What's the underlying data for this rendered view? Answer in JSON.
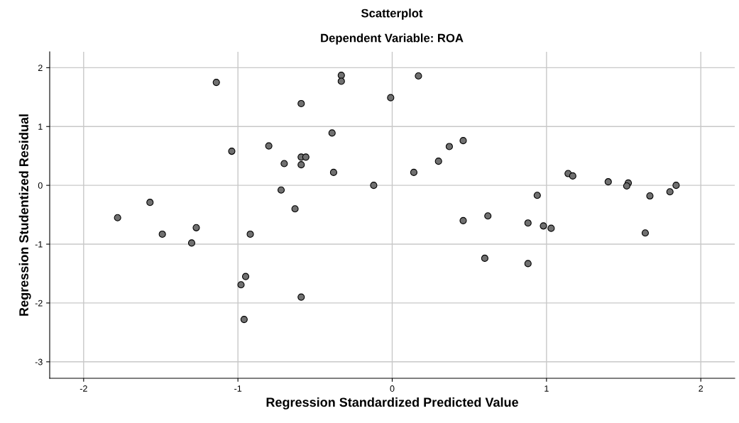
{
  "chart_data": {
    "type": "scatter",
    "title": "Scatterplot",
    "subtitle": "Dependent Variable: ROA",
    "xlabel": "Regression Standardized Predicted Value",
    "ylabel": "Regression Studentized Residual",
    "x": [
      -1.78,
      -1.57,
      -1.49,
      -1.3,
      -1.27,
      -1.14,
      -1.04,
      -0.96,
      -0.98,
      -0.95,
      -0.92,
      -0.8,
      -0.72,
      -0.7,
      -0.63,
      -0.59,
      -0.59,
      -0.59,
      -0.57,
      -0.56,
      -0.59,
      -0.39,
      -0.38,
      -0.33,
      -0.33,
      -0.12,
      -0.01,
      0.17,
      0.14,
      0.3,
      0.37,
      0.46,
      0.46,
      0.62,
      0.6,
      0.88,
      0.88,
      0.94,
      0.98,
      1.03,
      1.14,
      1.17,
      1.4,
      1.53,
      1.52,
      1.67,
      1.64,
      1.8,
      1.84
    ],
    "values": [
      -0.55,
      -0.29,
      -0.83,
      -0.98,
      -0.72,
      1.75,
      0.58,
      -2.28,
      -1.69,
      -1.55,
      -0.83,
      0.67,
      -0.08,
      0.37,
      -0.4,
      1.39,
      0.48,
      0.35,
      null,
      0.48,
      -1.9,
      0.89,
      0.22,
      1.87,
      1.77,
      0.0,
      1.49,
      1.86,
      0.22,
      0.41,
      0.66,
      0.76,
      -0.6,
      -0.52,
      -1.24,
      -1.33,
      -0.64,
      -0.17,
      -0.69,
      -0.73,
      0.2,
      0.16,
      0.06,
      0.04,
      -0.01,
      -0.18,
      -0.81,
      -0.11,
      0.0
    ],
    "color": "#707070",
    "marker": "circle",
    "grid": true,
    "xlim": [
      -2.22,
      2.22
    ],
    "xticks": [
      -2,
      -1,
      0,
      1,
      2
    ],
    "ylim": [
      -3.28,
      2.27
    ],
    "yticks": [
      -3,
      -2,
      -1,
      0,
      1,
      2
    ]
  }
}
